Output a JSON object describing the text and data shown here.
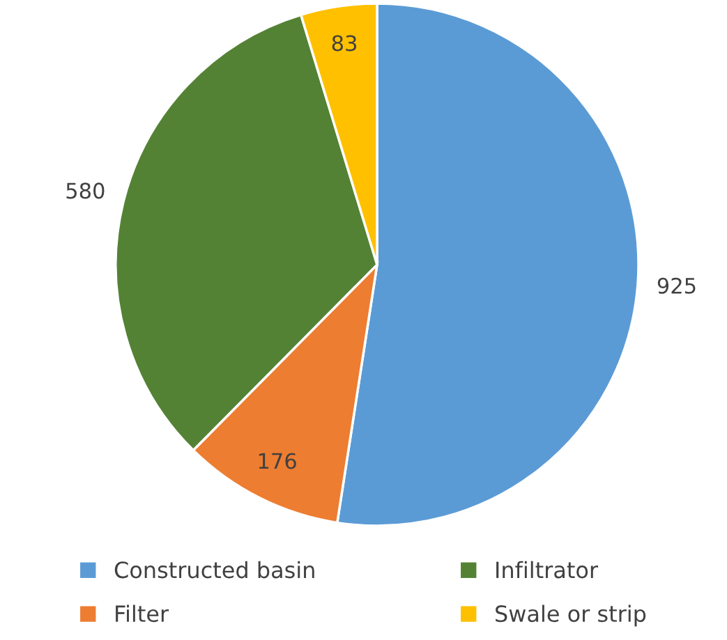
{
  "chart_data": {
    "type": "pie",
    "categories": [
      "Constructed basin",
      "Filter",
      "Infiltrator",
      "Swale or strip"
    ],
    "values": [
      925,
      176,
      580,
      83
    ],
    "colors": [
      "#5b9bd5",
      "#ed7d31",
      "#548235",
      "#ffc000"
    ],
    "data_labels": true,
    "legend": "bottom"
  }
}
